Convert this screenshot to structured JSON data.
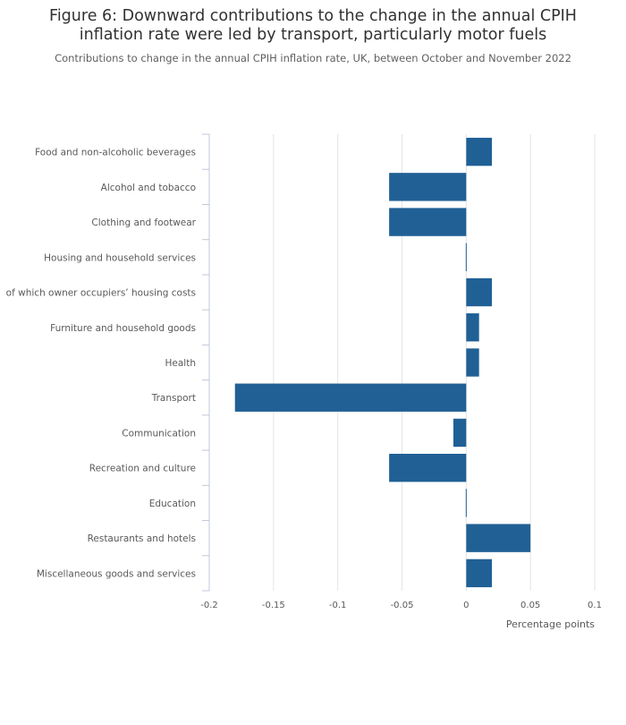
{
  "title": "Figure 6: Downward contributions to the change in the annual CPIH inflation rate were led by transport, particularly motor fuels",
  "subtitle": "Contributions to change in the annual CPIH inflation rate, UK, between October and November 2022",
  "chart_data": {
    "type": "bar",
    "orientation": "horizontal",
    "title": "Figure 6: Downward contributions to the change in the annual CPIH inflation rate were led by transport, particularly motor fuels",
    "subtitle": "Contributions to change in the annual CPIH inflation rate, UK, between October and November 2022",
    "xlabel": "Percentage points",
    "ylabel": "",
    "xlim": [
      -0.2,
      0.1
    ],
    "xticks": [
      -0.2,
      -0.15,
      -0.1,
      -0.05,
      0,
      0.05,
      0.1
    ],
    "xtick_labels": [
      "-0.2",
      "-0.15",
      "-0.1",
      "-0.05",
      "0",
      "0.05",
      "0.1"
    ],
    "grid": true,
    "bar_color": "#206095",
    "categories": [
      "Food and non-alcoholic beverages",
      "Alcohol and tobacco",
      "Clothing and footwear",
      "Housing and household services",
      "of which owner occupiers’ housing costs",
      "Furniture and household goods",
      "Health",
      "Transport",
      "Communication",
      "Recreation and culture",
      "Education",
      "Restaurants and hotels",
      "Miscellaneous goods and services"
    ],
    "values": [
      0.02,
      -0.06,
      -0.06,
      0.0,
      0.02,
      0.01,
      0.01,
      -0.18,
      -0.01,
      -0.06,
      0.0,
      0.05,
      0.02
    ]
  }
}
